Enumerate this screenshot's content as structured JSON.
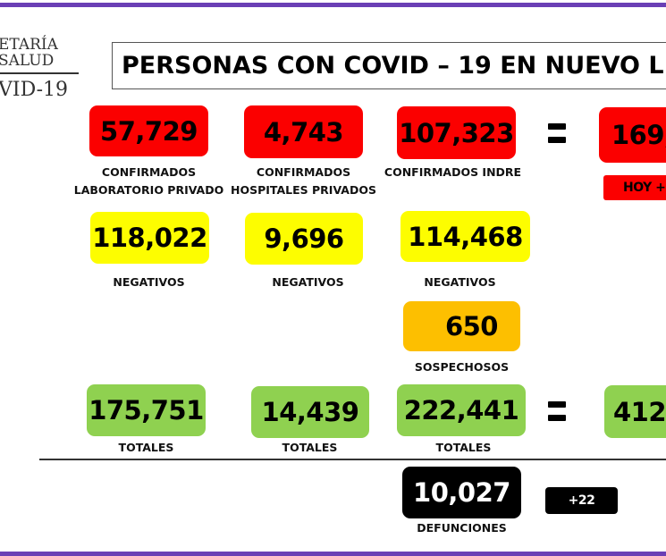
{
  "logo": {
    "line1": "ETARÍA",
    "line2": "SALUD",
    "line3": "VID-19"
  },
  "title": "PERSONAS CON COVID – 19 EN NUEVO L",
  "confirmados": [
    {
      "value": "57,729",
      "label1": "CONFIRMADOS",
      "label2": "LABORATORIO PRIVADO"
    },
    {
      "value": "4,743",
      "label1": "CONFIRMADOS",
      "label2": "HOSPITALES PRIVADOS"
    },
    {
      "value": "107,323",
      "label1": "CONFIRMADOS INDRE",
      "label2": ""
    }
  ],
  "confirmados_total": "169,",
  "hoy_label": "HOY +",
  "negativos": [
    {
      "value": "118,022",
      "label": "NEGATIVOS"
    },
    {
      "value": "9,696",
      "label": "NEGATIVOS"
    },
    {
      "value": "114,468",
      "label": "NEGATIVOS"
    }
  ],
  "sospechosos": {
    "value": "650",
    "label": "SOSPECHOSOS"
  },
  "totales": [
    {
      "value": "175,751",
      "label": "TOTALES"
    },
    {
      "value": "14,439",
      "label": "TOTALES"
    },
    {
      "value": "222,441",
      "label": "TOTALES"
    }
  ],
  "totales_total": "412,",
  "defunciones": {
    "value": "10,027",
    "label": "DEFUNCIONES",
    "delta": "+22"
  },
  "colors": {
    "red": "#fb0000",
    "yellow": "#fdfd00",
    "orange": "#fdbf00",
    "green": "#8fd150",
    "black": "#000000",
    "purple": "#6a3fb5"
  }
}
